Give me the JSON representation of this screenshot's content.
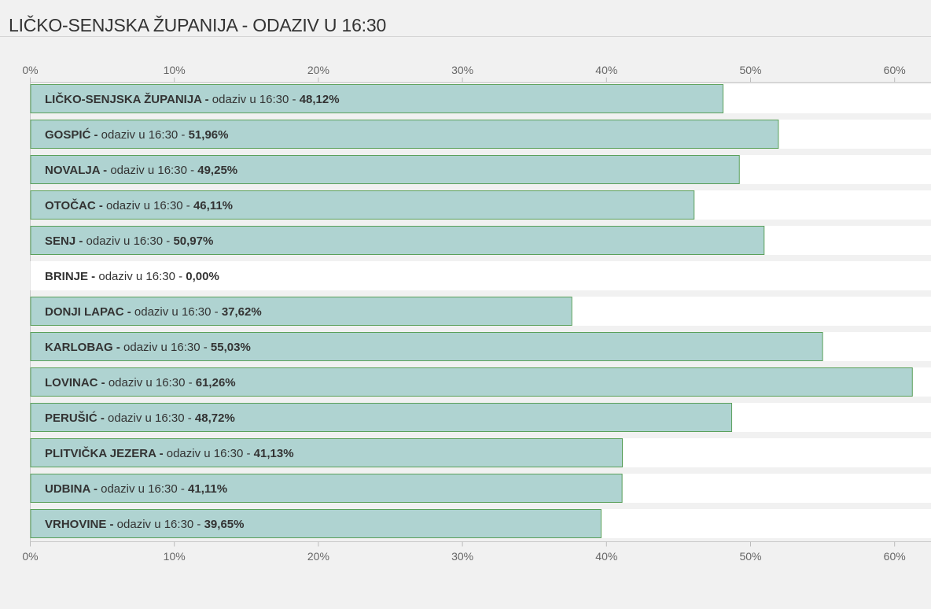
{
  "title": "LIČKO-SENJSKA ŽUPANIJA - ODAZIV U 16:30",
  "colors": {
    "bar_fill": "#afd3d1",
    "bar_stroke": "#5aa05a",
    "track": "#ffffff",
    "background": "#f1f1f1"
  },
  "chart_data": {
    "type": "bar",
    "orientation": "horizontal",
    "title": "LIČKO-SENJSKA ŽUPANIJA - ODAZIV U 16:30",
    "x_ticks": [
      "0%",
      "10%",
      "20%",
      "30%",
      "40%",
      "50%",
      "60%"
    ],
    "xlim": [
      0,
      62.6
    ],
    "grid": false,
    "label_middle": "odaziv u 16:30",
    "categories": [
      "LIČKO-SENJSKA ŽUPANIJA",
      "GOSPIĆ",
      "NOVALJA",
      "OTOČAC",
      "SENJ",
      "BRINJE",
      "DONJI LAPAC",
      "KARLOBAG",
      "LOVINAC",
      "PERUŠIĆ",
      "PLITVIČKA JEZERA",
      "UDBINA",
      "VRHOVINE"
    ],
    "values": [
      48.12,
      51.96,
      49.25,
      46.11,
      50.97,
      0.0,
      37.62,
      55.03,
      61.26,
      48.72,
      41.13,
      41.11,
      39.65
    ],
    "value_labels": [
      "48,12%",
      "51,96%",
      "49,25%",
      "46,11%",
      "50,97%",
      "0,00%",
      "37,62%",
      "55,03%",
      "61,26%",
      "48,72%",
      "41,13%",
      "41,11%",
      "39,65%"
    ]
  }
}
